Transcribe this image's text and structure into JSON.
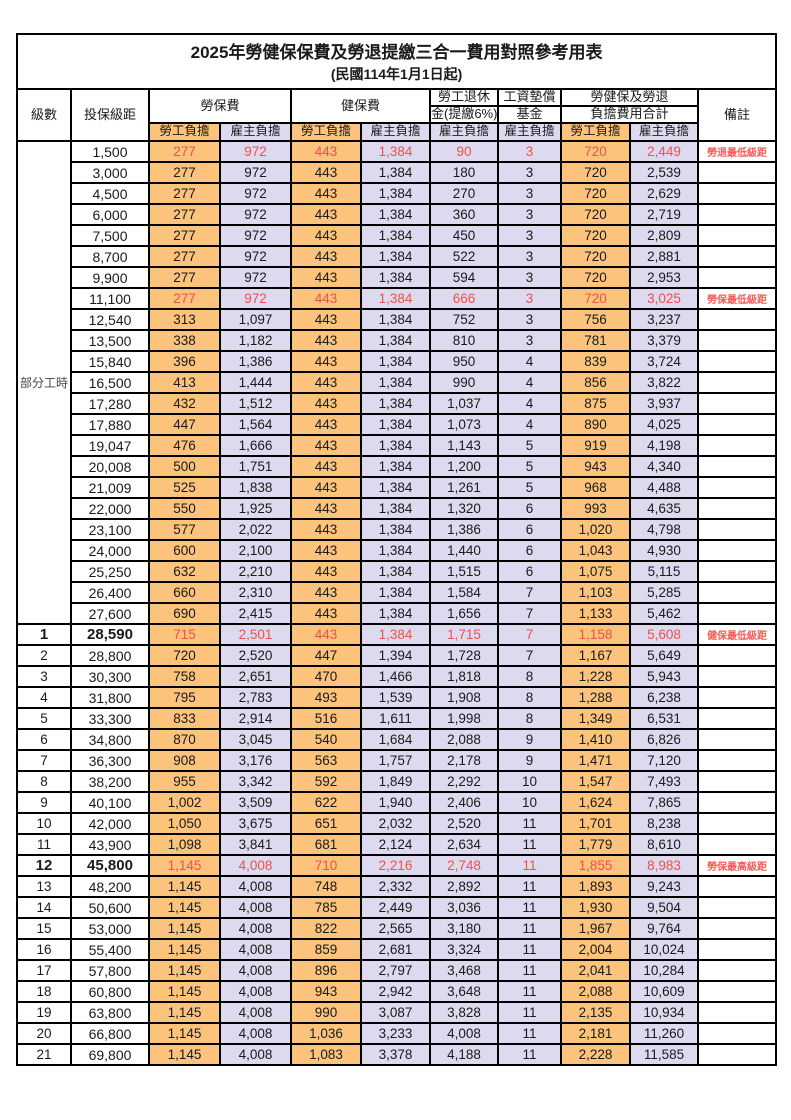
{
  "title": "2025年勞健保保費及勞退提繳三合一費用對照參考用表",
  "subtitle": "(民國114年1月1日起)",
  "header": {
    "level": "級數",
    "bracket": "投保級距",
    "labor_insurance": "勞保費",
    "health_insurance": "健保費",
    "pension_line1": "勞工退休",
    "pension_line2": "金(提繳6%)",
    "wage_fund_line1": "工資墊償",
    "wage_fund_line2": "基金",
    "total_line1": "勞健保及勞退",
    "total_line2": "負擔費用合計",
    "employee": "勞工負擔",
    "employer": "雇主負擔",
    "remark": "備註"
  },
  "part_time_label": "部分工時",
  "colors": {
    "employee_bg": "#FBC37C",
    "employer_bg": "#DDD9EE",
    "highlight_red": "#F0504B",
    "remark_red": "#F75B55",
    "border": "#000000",
    "text": "#1A1A1A",
    "page_bg": "#FFFFFF"
  },
  "rows": [
    {
      "level": "",
      "bracket": "1,500",
      "li_emp": "277",
      "li_er": "972",
      "hi_emp": "443",
      "hi_er": "1,384",
      "pension": "90",
      "fund": "3",
      "tot_emp": "720",
      "tot_er": "2,449",
      "remark": "勞退最低級距",
      "red": true,
      "bold": false
    },
    {
      "level": "",
      "bracket": "3,000",
      "li_emp": "277",
      "li_er": "972",
      "hi_emp": "443",
      "hi_er": "1,384",
      "pension": "180",
      "fund": "3",
      "tot_emp": "720",
      "tot_er": "2,539",
      "remark": "",
      "red": false,
      "bold": false
    },
    {
      "level": "",
      "bracket": "4,500",
      "li_emp": "277",
      "li_er": "972",
      "hi_emp": "443",
      "hi_er": "1,384",
      "pension": "270",
      "fund": "3",
      "tot_emp": "720",
      "tot_er": "2,629",
      "remark": "",
      "red": false,
      "bold": false
    },
    {
      "level": "",
      "bracket": "6,000",
      "li_emp": "277",
      "li_er": "972",
      "hi_emp": "443",
      "hi_er": "1,384",
      "pension": "360",
      "fund": "3",
      "tot_emp": "720",
      "tot_er": "2,719",
      "remark": "",
      "red": false,
      "bold": false
    },
    {
      "level": "",
      "bracket": "7,500",
      "li_emp": "277",
      "li_er": "972",
      "hi_emp": "443",
      "hi_er": "1,384",
      "pension": "450",
      "fund": "3",
      "tot_emp": "720",
      "tot_er": "2,809",
      "remark": "",
      "red": false,
      "bold": false
    },
    {
      "level": "",
      "bracket": "8,700",
      "li_emp": "277",
      "li_er": "972",
      "hi_emp": "443",
      "hi_er": "1,384",
      "pension": "522",
      "fund": "3",
      "tot_emp": "720",
      "tot_er": "2,881",
      "remark": "",
      "red": false,
      "bold": false
    },
    {
      "level": "",
      "bracket": "9,900",
      "li_emp": "277",
      "li_er": "972",
      "hi_emp": "443",
      "hi_er": "1,384",
      "pension": "594",
      "fund": "3",
      "tot_emp": "720",
      "tot_er": "2,953",
      "remark": "",
      "red": false,
      "bold": false
    },
    {
      "level": "",
      "bracket": "11,100",
      "li_emp": "277",
      "li_er": "972",
      "hi_emp": "443",
      "hi_er": "1,384",
      "pension": "666",
      "fund": "3",
      "tot_emp": "720",
      "tot_er": "3,025",
      "remark": "勞保最低級距",
      "red": true,
      "bold": false
    },
    {
      "level": "",
      "bracket": "12,540",
      "li_emp": "313",
      "li_er": "1,097",
      "hi_emp": "443",
      "hi_er": "1,384",
      "pension": "752",
      "fund": "3",
      "tot_emp": "756",
      "tot_er": "3,237",
      "remark": "",
      "red": false,
      "bold": false
    },
    {
      "level": "",
      "bracket": "13,500",
      "li_emp": "338",
      "li_er": "1,182",
      "hi_emp": "443",
      "hi_er": "1,384",
      "pension": "810",
      "fund": "3",
      "tot_emp": "781",
      "tot_er": "3,379",
      "remark": "",
      "red": false,
      "bold": false
    },
    {
      "level": "",
      "bracket": "15,840",
      "li_emp": "396",
      "li_er": "1,386",
      "hi_emp": "443",
      "hi_er": "1,384",
      "pension": "950",
      "fund": "4",
      "tot_emp": "839",
      "tot_er": "3,724",
      "remark": "",
      "red": false,
      "bold": false
    },
    {
      "level": "",
      "bracket": "16,500",
      "li_emp": "413",
      "li_er": "1,444",
      "hi_emp": "443",
      "hi_er": "1,384",
      "pension": "990",
      "fund": "4",
      "tot_emp": "856",
      "tot_er": "3,822",
      "remark": "",
      "red": false,
      "bold": false
    },
    {
      "level": "",
      "bracket": "17,280",
      "li_emp": "432",
      "li_er": "1,512",
      "hi_emp": "443",
      "hi_er": "1,384",
      "pension": "1,037",
      "fund": "4",
      "tot_emp": "875",
      "tot_er": "3,937",
      "remark": "",
      "red": false,
      "bold": false
    },
    {
      "level": "",
      "bracket": "17,880",
      "li_emp": "447",
      "li_er": "1,564",
      "hi_emp": "443",
      "hi_er": "1,384",
      "pension": "1,073",
      "fund": "4",
      "tot_emp": "890",
      "tot_er": "4,025",
      "remark": "",
      "red": false,
      "bold": false
    },
    {
      "level": "",
      "bracket": "19,047",
      "li_emp": "476",
      "li_er": "1,666",
      "hi_emp": "443",
      "hi_er": "1,384",
      "pension": "1,143",
      "fund": "5",
      "tot_emp": "919",
      "tot_er": "4,198",
      "remark": "",
      "red": false,
      "bold": false
    },
    {
      "level": "",
      "bracket": "20,008",
      "li_emp": "500",
      "li_er": "1,751",
      "hi_emp": "443",
      "hi_er": "1,384",
      "pension": "1,200",
      "fund": "5",
      "tot_emp": "943",
      "tot_er": "4,340",
      "remark": "",
      "red": false,
      "bold": false
    },
    {
      "level": "",
      "bracket": "21,009",
      "li_emp": "525",
      "li_er": "1,838",
      "hi_emp": "443",
      "hi_er": "1,384",
      "pension": "1,261",
      "fund": "5",
      "tot_emp": "968",
      "tot_er": "4,488",
      "remark": "",
      "red": false,
      "bold": false
    },
    {
      "level": "",
      "bracket": "22,000",
      "li_emp": "550",
      "li_er": "1,925",
      "hi_emp": "443",
      "hi_er": "1,384",
      "pension": "1,320",
      "fund": "6",
      "tot_emp": "993",
      "tot_er": "4,635",
      "remark": "",
      "red": false,
      "bold": false
    },
    {
      "level": "",
      "bracket": "23,100",
      "li_emp": "577",
      "li_er": "2,022",
      "hi_emp": "443",
      "hi_er": "1,384",
      "pension": "1,386",
      "fund": "6",
      "tot_emp": "1,020",
      "tot_er": "4,798",
      "remark": "",
      "red": false,
      "bold": false
    },
    {
      "level": "",
      "bracket": "24,000",
      "li_emp": "600",
      "li_er": "2,100",
      "hi_emp": "443",
      "hi_er": "1,384",
      "pension": "1,440",
      "fund": "6",
      "tot_emp": "1,043",
      "tot_er": "4,930",
      "remark": "",
      "red": false,
      "bold": false
    },
    {
      "level": "",
      "bracket": "25,250",
      "li_emp": "632",
      "li_er": "2,210",
      "hi_emp": "443",
      "hi_er": "1,384",
      "pension": "1,515",
      "fund": "6",
      "tot_emp": "1,075",
      "tot_er": "5,115",
      "remark": "",
      "red": false,
      "bold": false
    },
    {
      "level": "",
      "bracket": "26,400",
      "li_emp": "660",
      "li_er": "2,310",
      "hi_emp": "443",
      "hi_er": "1,384",
      "pension": "1,584",
      "fund": "7",
      "tot_emp": "1,103",
      "tot_er": "5,285",
      "remark": "",
      "red": false,
      "bold": false
    },
    {
      "level": "",
      "bracket": "27,600",
      "li_emp": "690",
      "li_er": "2,415",
      "hi_emp": "443",
      "hi_er": "1,384",
      "pension": "1,656",
      "fund": "7",
      "tot_emp": "1,133",
      "tot_er": "5,462",
      "remark": "",
      "red": false,
      "bold": false
    },
    {
      "level": "1",
      "bracket": "28,590",
      "li_emp": "715",
      "li_er": "2,501",
      "hi_emp": "443",
      "hi_er": "1,384",
      "pension": "1,715",
      "fund": "7",
      "tot_emp": "1,158",
      "tot_er": "5,608",
      "remark": "健保最低級距",
      "red": true,
      "bold": true
    },
    {
      "level": "2",
      "bracket": "28,800",
      "li_emp": "720",
      "li_er": "2,520",
      "hi_emp": "447",
      "hi_er": "1,394",
      "pension": "1,728",
      "fund": "7",
      "tot_emp": "1,167",
      "tot_er": "5,649",
      "remark": "",
      "red": false,
      "bold": false
    },
    {
      "level": "3",
      "bracket": "30,300",
      "li_emp": "758",
      "li_er": "2,651",
      "hi_emp": "470",
      "hi_er": "1,466",
      "pension": "1,818",
      "fund": "8",
      "tot_emp": "1,228",
      "tot_er": "5,943",
      "remark": "",
      "red": false,
      "bold": false
    },
    {
      "level": "4",
      "bracket": "31,800",
      "li_emp": "795",
      "li_er": "2,783",
      "hi_emp": "493",
      "hi_er": "1,539",
      "pension": "1,908",
      "fund": "8",
      "tot_emp": "1,288",
      "tot_er": "6,238",
      "remark": "",
      "red": false,
      "bold": false
    },
    {
      "level": "5",
      "bracket": "33,300",
      "li_emp": "833",
      "li_er": "2,914",
      "hi_emp": "516",
      "hi_er": "1,611",
      "pension": "1,998",
      "fund": "8",
      "tot_emp": "1,349",
      "tot_er": "6,531",
      "remark": "",
      "red": false,
      "bold": false
    },
    {
      "level": "6",
      "bracket": "34,800",
      "li_emp": "870",
      "li_er": "3,045",
      "hi_emp": "540",
      "hi_er": "1,684",
      "pension": "2,088",
      "fund": "9",
      "tot_emp": "1,410",
      "tot_er": "6,826",
      "remark": "",
      "red": false,
      "bold": false
    },
    {
      "level": "7",
      "bracket": "36,300",
      "li_emp": "908",
      "li_er": "3,176",
      "hi_emp": "563",
      "hi_er": "1,757",
      "pension": "2,178",
      "fund": "9",
      "tot_emp": "1,471",
      "tot_er": "7,120",
      "remark": "",
      "red": false,
      "bold": false
    },
    {
      "level": "8",
      "bracket": "38,200",
      "li_emp": "955",
      "li_er": "3,342",
      "hi_emp": "592",
      "hi_er": "1,849",
      "pension": "2,292",
      "fund": "10",
      "tot_emp": "1,547",
      "tot_er": "7,493",
      "remark": "",
      "red": false,
      "bold": false
    },
    {
      "level": "9",
      "bracket": "40,100",
      "li_emp": "1,002",
      "li_er": "3,509",
      "hi_emp": "622",
      "hi_er": "1,940",
      "pension": "2,406",
      "fund": "10",
      "tot_emp": "1,624",
      "tot_er": "7,865",
      "remark": "",
      "red": false,
      "bold": false
    },
    {
      "level": "10",
      "bracket": "42,000",
      "li_emp": "1,050",
      "li_er": "3,675",
      "hi_emp": "651",
      "hi_er": "2,032",
      "pension": "2,520",
      "fund": "11",
      "tot_emp": "1,701",
      "tot_er": "8,238",
      "remark": "",
      "red": false,
      "bold": false
    },
    {
      "level": "11",
      "bracket": "43,900",
      "li_emp": "1,098",
      "li_er": "3,841",
      "hi_emp": "681",
      "hi_er": "2,124",
      "pension": "2,634",
      "fund": "11",
      "tot_emp": "1,779",
      "tot_er": "8,610",
      "remark": "",
      "red": false,
      "bold": false
    },
    {
      "level": "12",
      "bracket": "45,800",
      "li_emp": "1,145",
      "li_er": "4,008",
      "hi_emp": "710",
      "hi_er": "2,216",
      "pension": "2,748",
      "fund": "11",
      "tot_emp": "1,855",
      "tot_er": "8,983",
      "remark": "勞保最高級距",
      "red": true,
      "bold": true
    },
    {
      "level": "13",
      "bracket": "48,200",
      "li_emp": "1,145",
      "li_er": "4,008",
      "hi_emp": "748",
      "hi_er": "2,332",
      "pension": "2,892",
      "fund": "11",
      "tot_emp": "1,893",
      "tot_er": "9,243",
      "remark": "",
      "red": false,
      "bold": false
    },
    {
      "level": "14",
      "bracket": "50,600",
      "li_emp": "1,145",
      "li_er": "4,008",
      "hi_emp": "785",
      "hi_er": "2,449",
      "pension": "3,036",
      "fund": "11",
      "tot_emp": "1,930",
      "tot_er": "9,504",
      "remark": "",
      "red": false,
      "bold": false
    },
    {
      "level": "15",
      "bracket": "53,000",
      "li_emp": "1,145",
      "li_er": "4,008",
      "hi_emp": "822",
      "hi_er": "2,565",
      "pension": "3,180",
      "fund": "11",
      "tot_emp": "1,967",
      "tot_er": "9,764",
      "remark": "",
      "red": false,
      "bold": false
    },
    {
      "level": "16",
      "bracket": "55,400",
      "li_emp": "1,145",
      "li_er": "4,008",
      "hi_emp": "859",
      "hi_er": "2,681",
      "pension": "3,324",
      "fund": "11",
      "tot_emp": "2,004",
      "tot_er": "10,024",
      "remark": "",
      "red": false,
      "bold": false
    },
    {
      "level": "17",
      "bracket": "57,800",
      "li_emp": "1,145",
      "li_er": "4,008",
      "hi_emp": "896",
      "hi_er": "2,797",
      "pension": "3,468",
      "fund": "11",
      "tot_emp": "2,041",
      "tot_er": "10,284",
      "remark": "",
      "red": false,
      "bold": false
    },
    {
      "level": "18",
      "bracket": "60,800",
      "li_emp": "1,145",
      "li_er": "4,008",
      "hi_emp": "943",
      "hi_er": "2,942",
      "pension": "3,648",
      "fund": "11",
      "tot_emp": "2,088",
      "tot_er": "10,609",
      "remark": "",
      "red": false,
      "bold": false
    },
    {
      "level": "19",
      "bracket": "63,800",
      "li_emp": "1,145",
      "li_er": "4,008",
      "hi_emp": "990",
      "hi_er": "3,087",
      "pension": "3,828",
      "fund": "11",
      "tot_emp": "2,135",
      "tot_er": "10,934",
      "remark": "",
      "red": false,
      "bold": false
    },
    {
      "level": "20",
      "bracket": "66,800",
      "li_emp": "1,145",
      "li_er": "4,008",
      "hi_emp": "1,036",
      "hi_er": "3,233",
      "pension": "4,008",
      "fund": "11",
      "tot_emp": "2,181",
      "tot_er": "11,260",
      "remark": "",
      "red": false,
      "bold": false
    },
    {
      "level": "21",
      "bracket": "69,800",
      "li_emp": "1,145",
      "li_er": "4,008",
      "hi_emp": "1,083",
      "hi_er": "3,378",
      "pension": "4,188",
      "fund": "11",
      "tot_emp": "2,228",
      "tot_er": "11,585",
      "remark": "",
      "red": false,
      "bold": false
    }
  ]
}
